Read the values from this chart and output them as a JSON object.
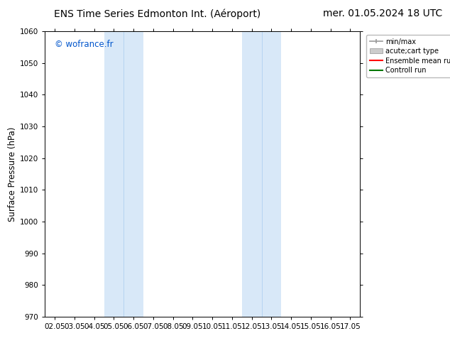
{
  "title_left": "ENS Time Series Edmonton Int. (Aéroport)",
  "title_right": "mer. 01.05.2024 18 UTC",
  "ylabel": "Surface Pressure (hPa)",
  "ylim": [
    970,
    1060
  ],
  "yticks": [
    970,
    980,
    990,
    1000,
    1010,
    1020,
    1030,
    1040,
    1050,
    1060
  ],
  "xtick_labels": [
    "02.05",
    "03.05",
    "04.05",
    "05.05",
    "06.05",
    "07.05",
    "08.05",
    "09.05",
    "10.05",
    "11.05",
    "12.05",
    "13.05",
    "14.05",
    "15.05",
    "16.05",
    "17.05"
  ],
  "xtick_positions": [
    0,
    1,
    2,
    3,
    4,
    5,
    6,
    7,
    8,
    9,
    10,
    11,
    12,
    13,
    14,
    15
  ],
  "shade_regions": [
    {
      "xstart": 2.5,
      "xend": 4.5,
      "color": "#d8e8f8"
    },
    {
      "xstart": 9.5,
      "xend": 11.5,
      "color": "#d8e8f8"
    }
  ],
  "shade_dividers": [
    3.5,
    10.5
  ],
  "watermark": "© wofrance.fr",
  "watermark_color": "#0055cc",
  "background_color": "#ffffff",
  "legend_items": [
    {
      "label": "min/max"
    },
    {
      "label": "acute;cart type"
    },
    {
      "label": "Ensemble mean run",
      "color": "#ff0000"
    },
    {
      "label": "Controll run",
      "color": "#007700"
    }
  ],
  "title_fontsize": 10,
  "tick_fontsize": 7.5,
  "ylabel_fontsize": 8.5
}
